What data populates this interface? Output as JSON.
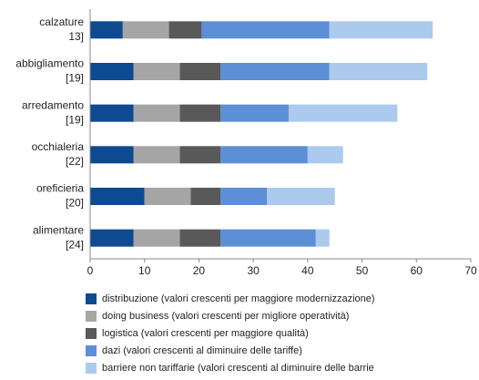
{
  "chart_data": {
    "type": "stacked-bar-horizontal",
    "categories": [
      "calzature",
      "abbigliamento",
      "arredamento",
      "occhialeria",
      "oreficieria",
      "alimentare"
    ],
    "category_notes": [
      "13]",
      "[19]",
      "[19]",
      "[22]",
      "[20]",
      "[24]"
    ],
    "series": [
      {
        "name": "distribuzione (valori crescenti per maggiore modernizzazione)",
        "color": "#0d4a91",
        "values": [
          6,
          8,
          8,
          8,
          10,
          8
        ]
      },
      {
        "name": "doing business (valori crescenti per migliore operatività)",
        "color": "#a5a5a5",
        "values": [
          8.5,
          8.5,
          8.5,
          8.5,
          8.5,
          8.5
        ]
      },
      {
        "name": "logistica (valori crescenti per maggiore qualità)",
        "color": "#595959",
        "values": [
          6,
          7.5,
          7.5,
          7.5,
          5.5,
          7.5
        ]
      },
      {
        "name": "dazi (valori crescenti al diminuire delle tariffe)",
        "color": "#5c8fd6",
        "values": [
          23.5,
          20,
          12.5,
          16,
          8.5,
          17.5
        ]
      },
      {
        "name": "barriere non tariffarie (valori crescenti al diminuire delle barrie",
        "color": "#abcaee",
        "values": [
          19,
          18,
          20,
          6.5,
          12.5,
          2.5
        ]
      }
    ],
    "xlim": [
      0,
      70
    ],
    "xticks": [
      0,
      10,
      20,
      30,
      40,
      50,
      60,
      70
    ]
  }
}
